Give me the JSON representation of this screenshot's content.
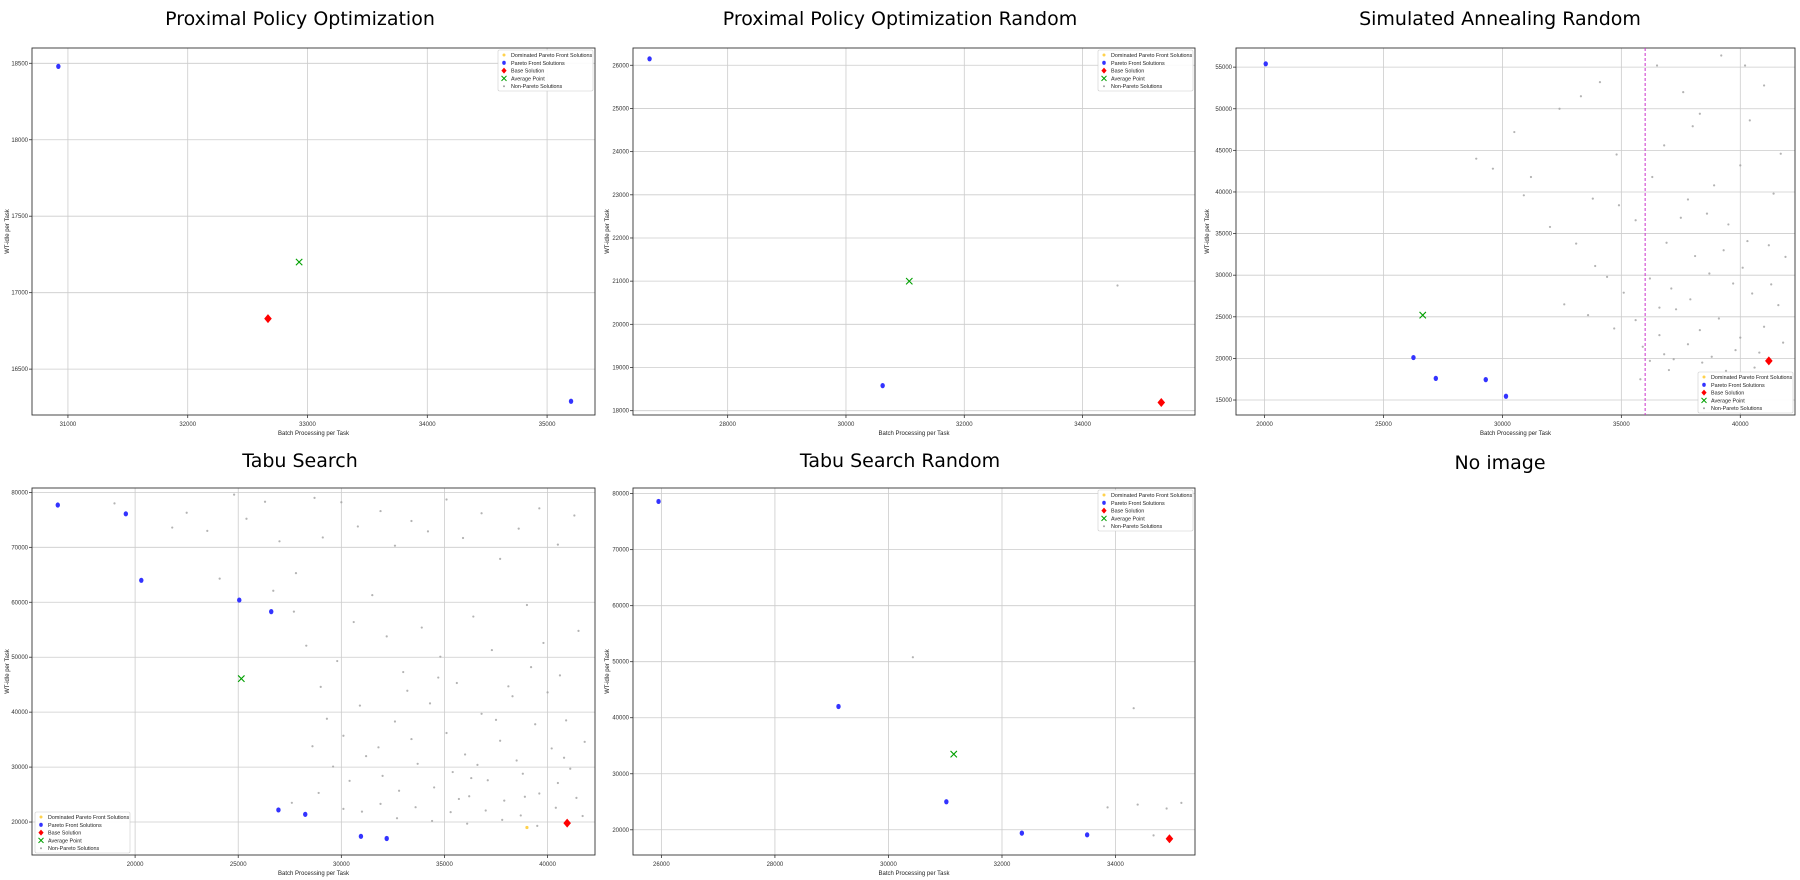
{
  "legend_labels": [
    "Dominated Pareto Front Solutions",
    "Pareto Front Solutions",
    "Base Solution",
    "Average Point",
    "Non-Pareto Solutions"
  ],
  "colors": {
    "pareto": "#3333ff",
    "base": "#ff0000",
    "average": "#00a000",
    "dominated": "#ffd24d",
    "non_pareto": "#a0a0a0",
    "vline": "#cc33cc",
    "grid": "#cccccc"
  },
  "no_image_label": "No image",
  "chart_data": [
    {
      "type": "scatter",
      "title": "Proximal Policy Optimization",
      "xlabel": "Batch Processing per Task",
      "ylabel": "WT-idle per Task",
      "xlim": [
        30700,
        35400
      ],
      "ylim": [
        16200,
        18600
      ],
      "xticks": [
        31000,
        32000,
        33000,
        34000,
        35000
      ],
      "yticks": [
        16500,
        17000,
        17500,
        18000,
        18500
      ],
      "legend": "top-right",
      "pareto": [
        [
          30920,
          18480
        ],
        [
          35200,
          16290
        ]
      ],
      "base": [
        32670,
        16830
      ],
      "average": [
        32930,
        17200
      ],
      "dominated": [],
      "non_pareto": []
    },
    {
      "type": "scatter",
      "title": "Proximal Policy Optimization Random",
      "xlabel": "Batch Processing per Task",
      "ylabel": "WT-idle per Task",
      "xlim": [
        26400,
        35900
      ],
      "ylim": [
        17900,
        26400
      ],
      "xticks": [
        28000,
        30000,
        32000,
        34000
      ],
      "yticks": [
        18000,
        19000,
        20000,
        21000,
        22000,
        23000,
        24000,
        25000,
        26000
      ],
      "legend": "top-right",
      "pareto": [
        [
          26680,
          26150
        ],
        [
          30620,
          18580
        ]
      ],
      "base": [
        35330,
        18190
      ],
      "average": [
        31070,
        21000
      ],
      "dominated": [],
      "non_pareto": [
        [
          34590,
          20900
        ]
      ]
    },
    {
      "type": "scatter",
      "title": "Simulated Annealing Random",
      "xlabel": "Batch Processing per Task",
      "ylabel": "WT-idle per Task",
      "xlim": [
        18800,
        42300
      ],
      "ylim": [
        13200,
        57300
      ],
      "xticks": [
        20000,
        25000,
        30000,
        35000,
        40000
      ],
      "yticks": [
        15000,
        20000,
        25000,
        30000,
        35000,
        40000,
        45000,
        50000,
        55000
      ],
      "legend": "bottom-right",
      "vline": 36000,
      "pareto": [
        [
          20050,
          55400
        ],
        [
          26260,
          20100
        ],
        [
          27200,
          17600
        ],
        [
          29300,
          17450
        ],
        [
          30150,
          15450
        ]
      ],
      "base": [
        41200,
        19700
      ],
      "average": [
        26650,
        25200
      ],
      "dominated": [],
      "non_pareto": [
        [
          30500,
          47200
        ],
        [
          31200,
          41800
        ],
        [
          32400,
          50000
        ],
        [
          33300,
          51500
        ],
        [
          34100,
          53200
        ],
        [
          34800,
          44500
        ],
        [
          36500,
          55200
        ],
        [
          37600,
          52000
        ],
        [
          38300,
          49400
        ],
        [
          39200,
          56400
        ],
        [
          40200,
          55200
        ],
        [
          41000,
          52800
        ],
        [
          28900,
          44000
        ],
        [
          29600,
          42800
        ],
        [
          30900,
          39600
        ],
        [
          32000,
          35800
        ],
        [
          33100,
          33800
        ],
        [
          33800,
          39200
        ],
        [
          34900,
          38400
        ],
        [
          35600,
          36600
        ],
        [
          36900,
          33900
        ],
        [
          37800,
          39100
        ],
        [
          38600,
          37400
        ],
        [
          39500,
          36100
        ],
        [
          40300,
          34100
        ],
        [
          41200,
          33600
        ],
        [
          41900,
          32200
        ],
        [
          33900,
          31100
        ],
        [
          34400,
          29800
        ],
        [
          35100,
          27900
        ],
        [
          36200,
          29600
        ],
        [
          37100,
          28400
        ],
        [
          37900,
          27100
        ],
        [
          38700,
          30200
        ],
        [
          39700,
          29000
        ],
        [
          40500,
          27800
        ],
        [
          41600,
          26400
        ],
        [
          32600,
          26500
        ],
        [
          33600,
          25200
        ],
        [
          34700,
          23600
        ],
        [
          35600,
          24600
        ],
        [
          36600,
          22800
        ],
        [
          37300,
          25900
        ],
        [
          38300,
          23400
        ],
        [
          39100,
          24800
        ],
        [
          40000,
          22500
        ],
        [
          41000,
          23800
        ],
        [
          41800,
          21900
        ],
        [
          35900,
          21400
        ],
        [
          36800,
          20500
        ],
        [
          37800,
          21700
        ],
        [
          38800,
          20200
        ],
        [
          39800,
          21000
        ],
        [
          40800,
          20700
        ],
        [
          36200,
          19700
        ],
        [
          37200,
          19900
        ],
        [
          38400,
          19500
        ],
        [
          35800,
          17500
        ],
        [
          37000,
          18600
        ],
        [
          39400,
          18500
        ],
        [
          40600,
          18900
        ],
        [
          36600,
          26100
        ],
        [
          38100,
          32300
        ],
        [
          39300,
          33000
        ],
        [
          40100,
          30900
        ],
        [
          41300,
          28900
        ],
        [
          37500,
          36900
        ],
        [
          38900,
          40800
        ],
        [
          40000,
          43200
        ],
        [
          41400,
          39800
        ],
        [
          36300,
          41800
        ],
        [
          36800,
          45600
        ],
        [
          38000,
          47900
        ],
        [
          40400,
          48600
        ],
        [
          41700,
          44600
        ]
      ]
    },
    {
      "type": "scatter",
      "title": "Tabu Search",
      "xlabel": "Batch Processing per Task",
      "ylabel": "WT-idle per Task",
      "xlim": [
        15000,
        42300
      ],
      "ylim": [
        14000,
        80800
      ],
      "xticks": [
        20000,
        25000,
        30000,
        35000,
        40000
      ],
      "yticks": [
        20000,
        30000,
        40000,
        50000,
        60000,
        70000,
        80000
      ],
      "legend": "bottom-left",
      "pareto": [
        [
          16250,
          77700
        ],
        [
          19550,
          76100
        ],
        [
          20300,
          64000
        ],
        [
          25050,
          60400
        ],
        [
          26600,
          58300
        ],
        [
          26950,
          22200
        ],
        [
          28250,
          21400
        ],
        [
          30950,
          17400
        ],
        [
          32200,
          17000
        ]
      ],
      "base": [
        40950,
        19800
      ],
      "average": [
        25150,
        46100
      ],
      "dominated": [
        [
          39000,
          19000
        ]
      ],
      "non_pareto": [
        [
          19000,
          78000
        ],
        [
          21800,
          73600
        ],
        [
          22500,
          76300
        ],
        [
          23500,
          73000
        ],
        [
          24100,
          64300
        ],
        [
          24800,
          79600
        ],
        [
          25400,
          75200
        ],
        [
          26300,
          78300
        ],
        [
          27000,
          71100
        ],
        [
          27800,
          65300
        ],
        [
          28700,
          79000
        ],
        [
          29100,
          71800
        ],
        [
          30000,
          78200
        ],
        [
          30800,
          73800
        ],
        [
          31900,
          76600
        ],
        [
          32600,
          70300
        ],
        [
          33400,
          74800
        ],
        [
          34200,
          72900
        ],
        [
          35100,
          78700
        ],
        [
          35900,
          71700
        ],
        [
          36800,
          76200
        ],
        [
          37700,
          67900
        ],
        [
          38600,
          73400
        ],
        [
          39600,
          77100
        ],
        [
          40500,
          70500
        ],
        [
          41300,
          75800
        ],
        [
          26700,
          62100
        ],
        [
          27700,
          58300
        ],
        [
          28300,
          52100
        ],
        [
          29000,
          44600
        ],
        [
          29800,
          49300
        ],
        [
          30600,
          56400
        ],
        [
          31500,
          61300
        ],
        [
          32200,
          53800
        ],
        [
          33000,
          47300
        ],
        [
          33900,
          55400
        ],
        [
          34800,
          50100
        ],
        [
          35600,
          45300
        ],
        [
          36400,
          57400
        ],
        [
          37300,
          51300
        ],
        [
          38100,
          44700
        ],
        [
          39000,
          59500
        ],
        [
          39800,
          52600
        ],
        [
          40600,
          46700
        ],
        [
          41500,
          54800
        ],
        [
          29300,
          38800
        ],
        [
          30100,
          35700
        ],
        [
          30900,
          41200
        ],
        [
          31800,
          33600
        ],
        [
          32600,
          38300
        ],
        [
          33400,
          35100
        ],
        [
          34300,
          41600
        ],
        [
          35100,
          36200
        ],
        [
          36000,
          32300
        ],
        [
          36800,
          39700
        ],
        [
          37700,
          34800
        ],
        [
          38500,
          31200
        ],
        [
          39400,
          37800
        ],
        [
          40200,
          33400
        ],
        [
          41100,
          29700
        ],
        [
          29600,
          30100
        ],
        [
          30400,
          27500
        ],
        [
          31200,
          32000
        ],
        [
          32000,
          28400
        ],
        [
          32800,
          25700
        ],
        [
          33700,
          30600
        ],
        [
          34500,
          26300
        ],
        [
          35400,
          29100
        ],
        [
          36200,
          24700
        ],
        [
          37100,
          27600
        ],
        [
          37900,
          23900
        ],
        [
          38800,
          28800
        ],
        [
          39600,
          25200
        ],
        [
          40500,
          27100
        ],
        [
          41400,
          24400
        ],
        [
          30100,
          22400
        ],
        [
          31000,
          21900
        ],
        [
          31900,
          23300
        ],
        [
          32700,
          20700
        ],
        [
          33600,
          22700
        ],
        [
          34400,
          20200
        ],
        [
          35300,
          21800
        ],
        [
          36100,
          19700
        ],
        [
          37000,
          22100
        ],
        [
          37800,
          20400
        ],
        [
          38700,
          21200
        ],
        [
          39500,
          19300
        ],
        [
          40400,
          22600
        ],
        [
          41700,
          21100
        ],
        [
          28600,
          33800
        ],
        [
          28900,
          25300
        ],
        [
          27600,
          23500
        ],
        [
          35700,
          24200
        ],
        [
          36600,
          30400
        ],
        [
          37500,
          38600
        ],
        [
          38300,
          42900
        ],
        [
          39200,
          48200
        ],
        [
          40000,
          43600
        ],
        [
          40900,
          38500
        ],
        [
          41800,
          34600
        ],
        [
          33200,
          43900
        ],
        [
          34700,
          46300
        ],
        [
          36300,
          28000
        ],
        [
          38900,
          24600
        ],
        [
          40800,
          31700
        ]
      ]
    },
    {
      "type": "scatter",
      "title": "Tabu Search Random",
      "xlabel": "Batch Processing per Task",
      "ylabel": "WT-idle per Task",
      "xlim": [
        25500,
        35400
      ],
      "ylim": [
        15500,
        81000
      ],
      "xticks": [
        26000,
        28000,
        30000,
        32000,
        34000
      ],
      "yticks": [
        20000,
        30000,
        40000,
        50000,
        60000,
        70000,
        80000
      ],
      "legend": "top-right",
      "pareto": [
        [
          25950,
          78600
        ],
        [
          29120,
          42000
        ],
        [
          31020,
          25000
        ],
        [
          32350,
          19400
        ],
        [
          33500,
          19100
        ]
      ],
      "base": [
        34950,
        18400
      ],
      "average": [
        31150,
        33500
      ],
      "dominated": [],
      "non_pareto": [
        [
          30430,
          50800
        ],
        [
          34320,
          41700
        ],
        [
          34390,
          24500
        ],
        [
          34900,
          23800
        ],
        [
          35160,
          24800
        ],
        [
          33860,
          24000
        ],
        [
          34670,
          19000
        ]
      ]
    }
  ]
}
